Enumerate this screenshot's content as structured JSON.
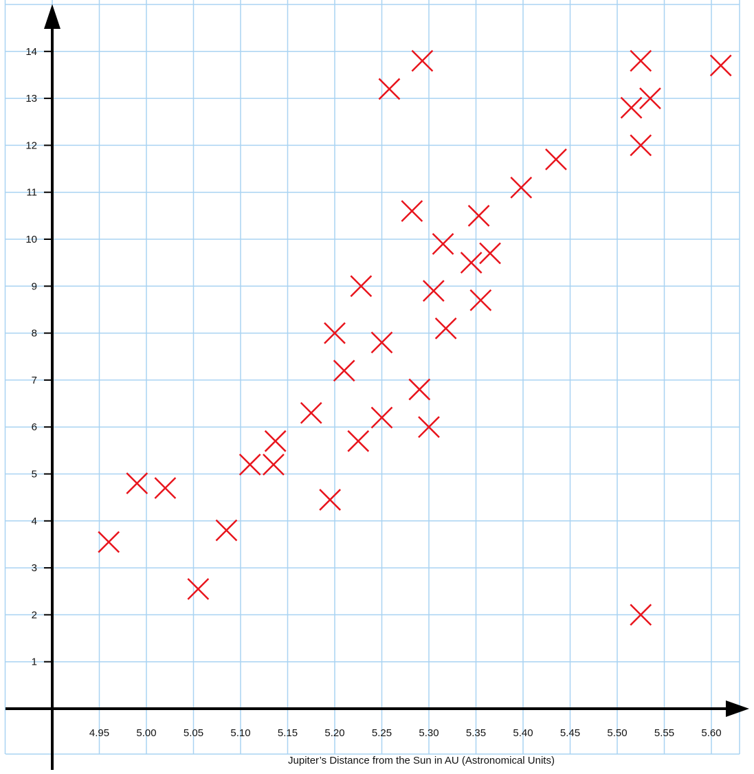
{
  "chart_data": {
    "type": "scatter",
    "title": "",
    "xlabel": "Jupiter’s Distance from the Sun in AU (Astronomical Units)",
    "ylabel": "",
    "x_ticks": [
      "4.95",
      "5.00",
      "5.05",
      "5.10",
      "5.15",
      "5.20",
      "5.25",
      "5.30",
      "5.35",
      "5.40",
      "5.45",
      "5.50",
      "5.55",
      "5.60"
    ],
    "y_ticks": [
      "1",
      "2",
      "3",
      "4",
      "5",
      "6",
      "7",
      "8",
      "9",
      "10",
      "11",
      "12",
      "13",
      "14"
    ],
    "xlim": [
      4.9,
      5.65
    ],
    "ylim": [
      0,
      14.5
    ],
    "grid": true,
    "marker": "x",
    "colors": {
      "marker": "#e8141c",
      "grid": "#a9d3f2",
      "axis": "#000000",
      "background": "#ffffff"
    },
    "points": [
      {
        "x": 4.96,
        "y": 3.55
      },
      {
        "x": 4.99,
        "y": 4.8
      },
      {
        "x": 5.02,
        "y": 4.7
      },
      {
        "x": 5.055,
        "y": 2.55
      },
      {
        "x": 5.085,
        "y": 3.8
      },
      {
        "x": 5.11,
        "y": 5.2
      },
      {
        "x": 5.135,
        "y": 5.2
      },
      {
        "x": 5.137,
        "y": 5.7
      },
      {
        "x": 5.175,
        "y": 6.3
      },
      {
        "x": 5.195,
        "y": 4.45
      },
      {
        "x": 5.2,
        "y": 8.0
      },
      {
        "x": 5.21,
        "y": 7.2
      },
      {
        "x": 5.225,
        "y": 5.7
      },
      {
        "x": 5.228,
        "y": 9.0
      },
      {
        "x": 5.25,
        "y": 7.8
      },
      {
        "x": 5.25,
        "y": 6.2
      },
      {
        "x": 5.258,
        "y": 13.2
      },
      {
        "x": 5.282,
        "y": 10.6
      },
      {
        "x": 5.29,
        "y": 6.8
      },
      {
        "x": 5.293,
        "y": 13.8
      },
      {
        "x": 5.3,
        "y": 6.0
      },
      {
        "x": 5.305,
        "y": 8.9
      },
      {
        "x": 5.315,
        "y": 9.9
      },
      {
        "x": 5.318,
        "y": 8.1
      },
      {
        "x": 5.345,
        "y": 9.5
      },
      {
        "x": 5.353,
        "y": 10.5
      },
      {
        "x": 5.355,
        "y": 8.7
      },
      {
        "x": 5.365,
        "y": 9.7
      },
      {
        "x": 5.398,
        "y": 11.1
      },
      {
        "x": 5.435,
        "y": 11.7
      },
      {
        "x": 5.515,
        "y": 12.8
      },
      {
        "x": 5.525,
        "y": 13.8
      },
      {
        "x": 5.525,
        "y": 12.0
      },
      {
        "x": 5.525,
        "y": 2.0
      },
      {
        "x": 5.535,
        "y": 13.0
      },
      {
        "x": 5.61,
        "y": 13.7
      }
    ]
  }
}
